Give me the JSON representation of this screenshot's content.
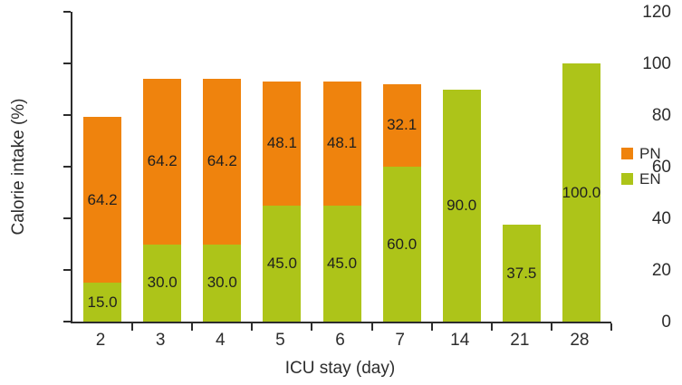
{
  "chart_data": {
    "type": "bar",
    "stacked": true,
    "title": "",
    "xlabel": "ICU stay (day)",
    "ylabel": "Calorie intake (%)",
    "categories": [
      "2",
      "3",
      "4",
      "5",
      "6",
      "7",
      "14",
      "21",
      "28"
    ],
    "series": [
      {
        "name": "PN",
        "color": "#EF830D",
        "values": [
          64.2,
          64.2,
          64.2,
          48.1,
          48.1,
          32.1,
          0,
          0,
          0
        ]
      },
      {
        "name": "EN",
        "color": "#ADC419",
        "values": [
          15.0,
          30.0,
          30.0,
          45.0,
          45.0,
          60.0,
          90.0,
          37.5,
          100.0
        ]
      }
    ],
    "bar_value_labels": {
      "PN": [
        "64.2",
        "64.2",
        "64.2",
        "48.1",
        "48.1",
        "32.1",
        "",
        "",
        ""
      ],
      "EN": [
        "15.0",
        "30.0",
        "30.0",
        "45.0",
        "45.0",
        "60.0",
        "90.0",
        "37.5",
        "100.0"
      ]
    },
    "ylim": [
      0,
      120
    ],
    "yticks": [
      "0",
      "20",
      "40",
      "60",
      "80",
      "100",
      "120"
    ],
    "grid": false,
    "legend_position": "right",
    "legend": [
      {
        "label": "PN",
        "color": "#EF830D"
      },
      {
        "label": "EN",
        "color": "#ADC419"
      }
    ],
    "axis_color": "#2d2d2d",
    "label_text_color": "#1f1f1f"
  }
}
